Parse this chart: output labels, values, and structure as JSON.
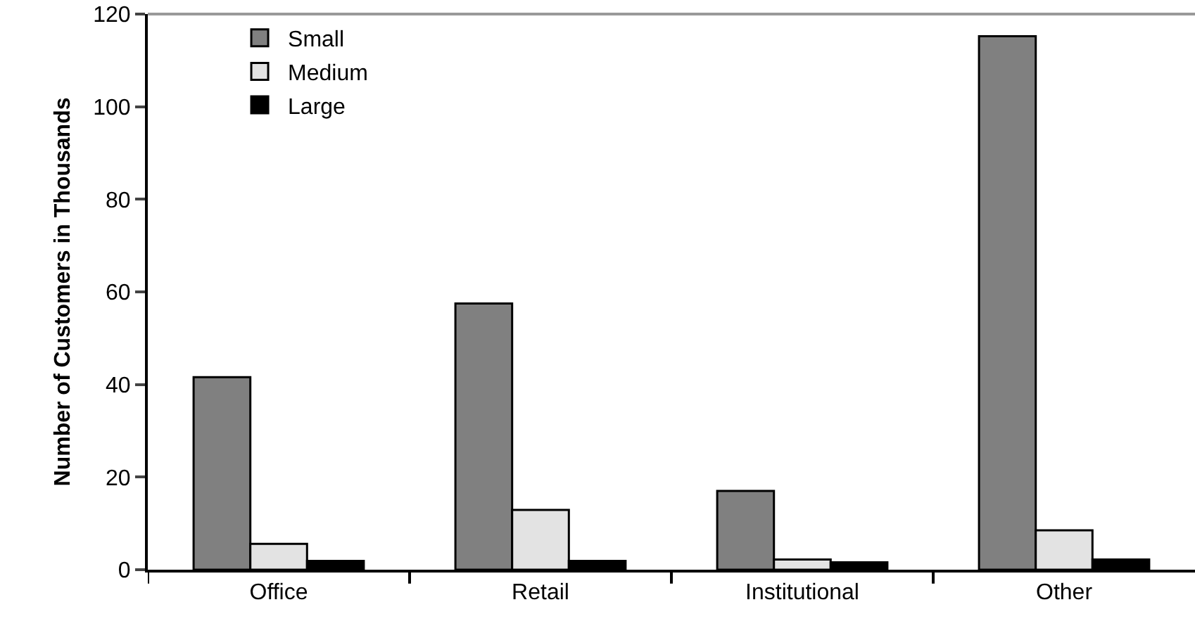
{
  "chart_data": {
    "type": "bar",
    "ylabel": "Number of Customers in Thousands",
    "categories": [
      "Office",
      "Retail",
      "Institutional",
      "Other"
    ],
    "series": [
      {
        "name": "Small",
        "color": "#808080",
        "values": [
          41.6,
          57.5,
          17.0,
          115.2
        ]
      },
      {
        "name": "Medium",
        "color": "#e3e3e3",
        "values": [
          5.6,
          12.9,
          2.2,
          8.5
        ]
      },
      {
        "name": "Large",
        "color": "#000000",
        "values": [
          1.9,
          1.9,
          1.6,
          2.2
        ]
      }
    ],
    "ylim": [
      0,
      120
    ],
    "yticks": [
      0,
      20,
      40,
      60,
      80,
      100,
      120
    ],
    "grid": false,
    "legend": "top left"
  }
}
